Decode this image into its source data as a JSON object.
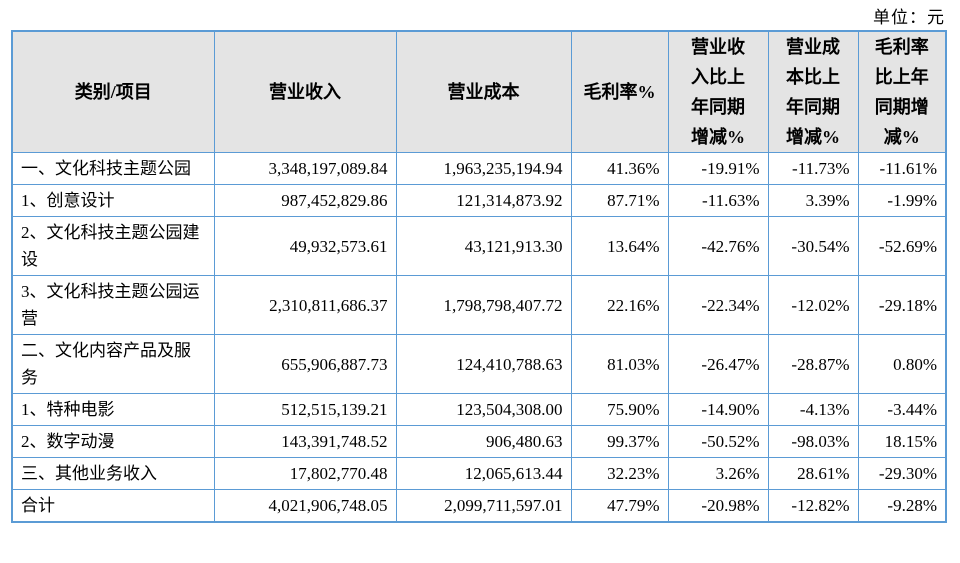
{
  "unit_label": "单位：元",
  "colors": {
    "table_border": "#5b9bd5",
    "header_background": "#e4e4e4",
    "text": "#000000"
  },
  "table": {
    "columns": [
      {
        "label": "类别/项目"
      },
      {
        "label": "营业收入"
      },
      {
        "label": "营业成本"
      },
      {
        "label": "毛利率%"
      },
      {
        "label": "营业收\n入比上\n年同期\n增减%"
      },
      {
        "label": "营业成\n本比上\n年同期\n增减%"
      },
      {
        "label": "毛利率\n比上年\n同期增\n减%"
      }
    ],
    "rows": [
      [
        "一、文化科技主题公园",
        "3,348,197,089.84",
        "1,963,235,194.94",
        "41.36%",
        "-19.91%",
        "-11.73%",
        "-11.61%"
      ],
      [
        "1、创意设计",
        "987,452,829.86",
        "121,314,873.92",
        "87.71%",
        "-11.63%",
        "3.39%",
        "-1.99%"
      ],
      [
        "2、文化科技主题公园建设",
        "49,932,573.61",
        "43,121,913.30",
        "13.64%",
        "-42.76%",
        "-30.54%",
        "-52.69%"
      ],
      [
        "3、文化科技主题公园运营",
        "2,310,811,686.37",
        "1,798,798,407.72",
        "22.16%",
        "-22.34%",
        "-12.02%",
        "-29.18%"
      ],
      [
        "二、文化内容产品及服务",
        "655,906,887.73",
        "124,410,788.63",
        "81.03%",
        "-26.47%",
        "-28.87%",
        "0.80%"
      ],
      [
        "1、特种电影",
        "512,515,139.21",
        "123,504,308.00",
        "75.90%",
        "-14.90%",
        "-4.13%",
        "-3.44%"
      ],
      [
        "2、数字动漫",
        "143,391,748.52",
        "906,480.63",
        "99.37%",
        "-50.52%",
        "-98.03%",
        "18.15%"
      ],
      [
        "三、其他业务收入",
        "17,802,770.48",
        "12,065,613.44",
        "32.23%",
        "3.26%",
        "28.61%",
        "-29.30%"
      ],
      [
        "合计",
        "4,021,906,748.05",
        "2,099,711,597.01",
        "47.79%",
        "-20.98%",
        "-12.82%",
        "-9.28%"
      ]
    ]
  }
}
